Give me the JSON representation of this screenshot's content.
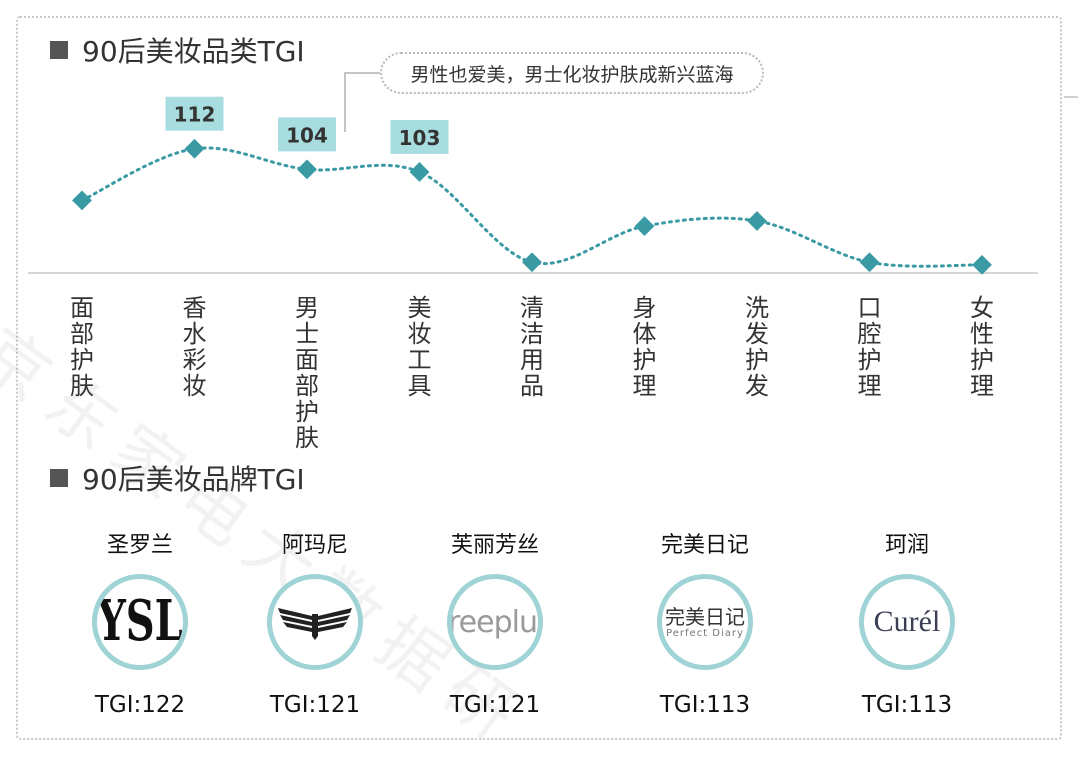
{
  "chart_title": "90后美妆品类TGI",
  "brand_title": "90后美妆品牌TGI",
  "callout": "男性也爱美，男士化妆护肤成新兴蓝海",
  "watermark": "京东家电大数据研",
  "colors": {
    "marker": "#3a9aa4",
    "label_box": "#a8dde0",
    "line": "#3a9aa4",
    "ring": "#9fd3d6"
  },
  "chart_data": {
    "type": "line",
    "categories": [
      "面部护肤",
      "香水彩妆",
      "男士面部护肤",
      "美妆工具",
      "清洁用品",
      "身体护理",
      "洗发护发",
      "口腔护理",
      "女性护理"
    ],
    "values": [
      92,
      112,
      104,
      103,
      68,
      82,
      84,
      68,
      67
    ],
    "data_labels": {
      "香水彩妆": "112",
      "男士面部护肤": "104",
      "美妆工具": "103"
    },
    "annotation": "男性也爱美，男士化妆护肤成新兴蓝海",
    "grid": false,
    "line_style": "dotted"
  },
  "brands": [
    {
      "name": "圣罗兰",
      "logo": "YSL",
      "tgi": "TGI:122"
    },
    {
      "name": "阿玛尼",
      "logo": "eagle-icon",
      "tgi": "TGI:121"
    },
    {
      "name": "芙丽芳丝",
      "logo": "freeplus",
      "tgi": "TGI:121"
    },
    {
      "name": "完美日记",
      "logo_text": "完美日记",
      "logo_sub": "Perfect Diary",
      "tgi": "TGI:113"
    },
    {
      "name": "珂润",
      "logo": "Curél",
      "tgi": "TGI:113"
    }
  ]
}
